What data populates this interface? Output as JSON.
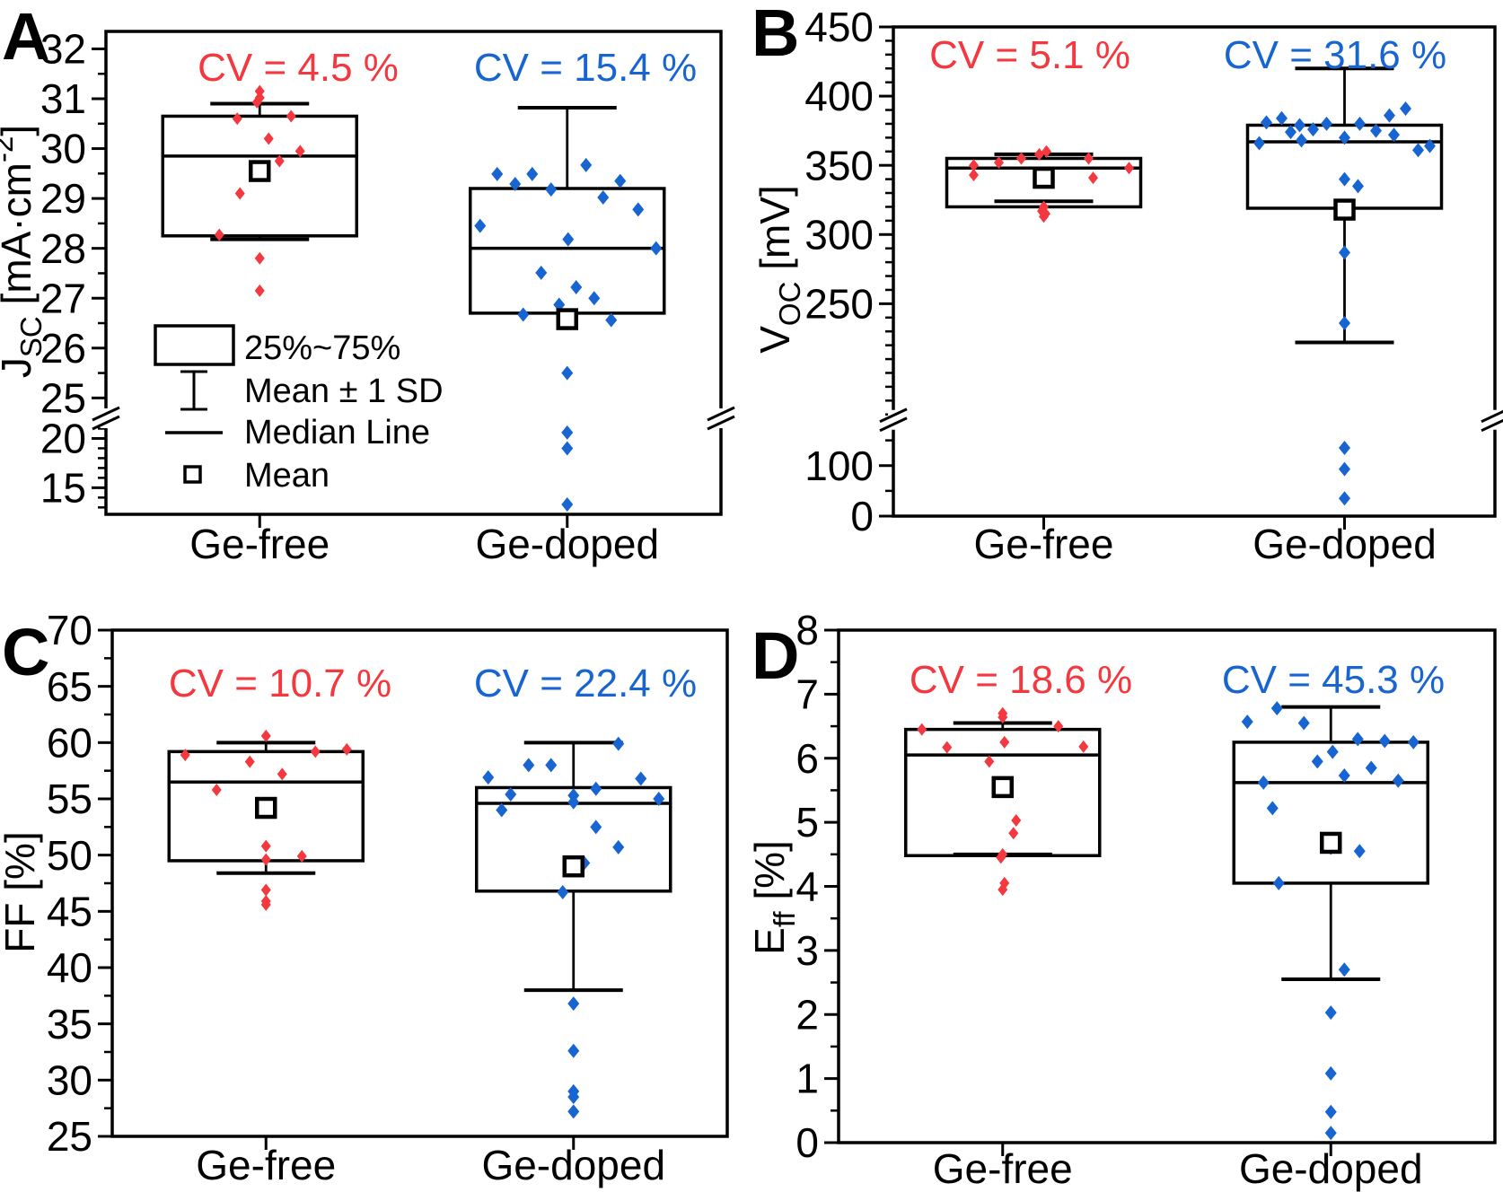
{
  "figure": {
    "categories": [
      "Ge-free",
      "Ge-doped"
    ],
    "colors": {
      "red": "#f4383f",
      "blue": "#1865d2",
      "stroke": "#000000",
      "background": "#ffffff"
    }
  },
  "chart_data": [
    {
      "type": "box",
      "letter": "A",
      "ylabel_parts": [
        [
          "J",
          0
        ],
        [
          "SC",
          -1
        ],
        [
          " [mA·cm",
          0
        ],
        [
          "-2",
          1
        ],
        [
          "]",
          0
        ]
      ],
      "axis": {
        "segments": [
          {
            "v0": 24.7,
            "v1": 32.35,
            "frac": 0.808,
            "majors": [
              32,
              31,
              30,
              29,
              28,
              27,
              26,
              25
            ],
            "minor_step": 0.5
          },
          {
            "v0": 12.3,
            "v1": 21.5,
            "frac": 0.192,
            "majors": [
              20,
              15
            ],
            "minor_step": 1
          }
        ]
      },
      "groups": [
        {
          "name": "Ge-free",
          "color_key": "red",
          "cv_label": "CV = 4.5 %",
          "stats": {
            "q1": 28.25,
            "q3": 30.65,
            "median": 29.85,
            "mean": 29.55,
            "whisker_high": 30.9,
            "whisker_low": 28.18
          },
          "points": [
            [
              0,
              31.15
            ],
            [
              0,
              31.02
            ],
            [
              -3,
              30.93
            ],
            [
              35,
              30.65
            ],
            [
              -25,
              30.6
            ],
            [
              10,
              30.2
            ],
            [
              45,
              29.95
            ],
            [
              22,
              29.75
            ],
            [
              0,
              29.5
            ],
            [
              -22,
              29.1
            ],
            [
              -45,
              28.27
            ],
            [
              0,
              27.8
            ],
            [
              0,
              27.15
            ]
          ]
        },
        {
          "name": "Ge-doped",
          "color_key": "blue",
          "cv_label": "CV = 15.4 %",
          "stats": {
            "q1": 26.7,
            "q3": 29.2,
            "median": 28.0,
            "mean": 26.58,
            "whisker_high": 30.82,
            "whisker_low": null
          },
          "points": [
            [
              21,
              29.67
            ],
            [
              -78,
              29.49
            ],
            [
              -39,
              29.49
            ],
            [
              59,
              29.35
            ],
            [
              -58,
              29.29
            ],
            [
              -18,
              29.18
            ],
            [
              40,
              29.02
            ],
            [
              79,
              28.78
            ],
            [
              -97,
              28.45
            ],
            [
              1,
              28.18
            ],
            [
              99,
              28.0
            ],
            [
              -29,
              27.51
            ],
            [
              10,
              27.22
            ],
            [
              30,
              27.0
            ],
            [
              -9,
              26.87
            ],
            [
              -49,
              26.67
            ],
            [
              49,
              26.56
            ],
            [
              0,
              25.5
            ],
            [
              0,
              20.6
            ],
            [
              0,
              19.0
            ],
            [
              0,
              13.3
            ]
          ]
        }
      ],
      "legend": {
        "items": [
          {
            "symbol": "box",
            "label": "25%~75%"
          },
          {
            "symbol": "errorbar",
            "label": "Mean ± 1 SD"
          },
          {
            "symbol": "line",
            "label": "Median Line"
          },
          {
            "symbol": "square",
            "label": "Mean"
          }
        ]
      }
    },
    {
      "type": "box",
      "letter": "B",
      "ylabel_parts": [
        [
          "V",
          0
        ],
        [
          "OC",
          -1
        ],
        [
          " [mV]",
          0
        ]
      ],
      "axis": {
        "segments": [
          {
            "v0": 170,
            "v1": 450,
            "frac": 0.81,
            "majors": [
              450,
              400,
              350,
              300,
              250
            ],
            "minor_step": 10
          },
          {
            "v0": 0,
            "v1": 180,
            "frac": 0.19,
            "majors": [
              100,
              0
            ],
            "minor_step": 50
          }
        ]
      },
      "groups": [
        {
          "name": "Ge-free",
          "color_key": "red",
          "cv_label": "CV = 5.1 %",
          "stats": {
            "q1": 320,
            "q3": 355,
            "median": 348,
            "mean": 341,
            "whisker_high": 358,
            "whisker_low": 324
          },
          "points": [
            [
              3,
              360
            ],
            [
              -5,
              358
            ],
            [
              -25,
              355
            ],
            [
              50,
              355
            ],
            [
              -50,
              352
            ],
            [
              -78,
              350
            ],
            [
              95,
              348
            ],
            [
              -78,
              343
            ],
            [
              55,
              341
            ],
            [
              0,
              320
            ],
            [
              -2,
              317
            ],
            [
              2,
              315
            ],
            [
              0,
              313
            ]
          ]
        },
        {
          "name": "Ge-doped",
          "color_key": "blue",
          "cv_label": "CV = 31.6 %",
          "stats": {
            "q1": 319,
            "q3": 379,
            "median": 367,
            "mean": 318,
            "whisker_high": 420,
            "whisker_low": 222
          },
          "points": [
            [
              68,
              391
            ],
            [
              50,
              386
            ],
            [
              -70,
              384
            ],
            [
              -87,
              381
            ],
            [
              -20,
              380
            ],
            [
              17,
              380
            ],
            [
              -50,
              379
            ],
            [
              -35,
              376
            ],
            [
              35,
              375
            ],
            [
              -60,
              374
            ],
            [
              55,
              372
            ],
            [
              0,
              370
            ],
            [
              -48,
              368
            ],
            [
              -95,
              366
            ],
            [
              95,
              364
            ],
            [
              82,
              361
            ],
            [
              0,
              340
            ],
            [
              15,
              335
            ],
            [
              0,
              287
            ],
            [
              0,
              236
            ],
            [
              0,
              135
            ],
            [
              0,
              93
            ],
            [
              0,
              35
            ]
          ]
        }
      ]
    },
    {
      "type": "box",
      "letter": "C",
      "ylabel_parts": [
        [
          "FF [%]",
          0
        ]
      ],
      "axis": {
        "segments": [
          {
            "v0": 25,
            "v1": 70,
            "frac": 1,
            "majors": [
              70,
              65,
              60,
              55,
              50,
              45,
              40,
              35,
              30,
              25
            ],
            "minor_step": 2.5
          }
        ]
      },
      "groups": [
        {
          "name": "Ge-free",
          "color_key": "red",
          "cv_label": "CV = 10.7 %",
          "stats": {
            "q1": 49.5,
            "q3": 59.2,
            "median": 56.5,
            "mean": 54.2,
            "whisker_high": 60.0,
            "whisker_low": 48.4
          },
          "points": [
            [
              0,
              60.6
            ],
            [
              90,
              59.4
            ],
            [
              55,
              59.2
            ],
            [
              -90,
              58.9
            ],
            [
              -18,
              58.3
            ],
            [
              18,
              57.2
            ],
            [
              -55,
              55.8
            ],
            [
              0,
              50.8
            ],
            [
              40,
              49.9
            ],
            [
              0,
              49.6
            ],
            [
              0,
              46.9
            ],
            [
              0,
              45.9
            ],
            [
              0,
              45.6
            ]
          ]
        },
        {
          "name": "Ge-doped",
          "color_key": "blue",
          "cv_label": "CV = 22.4 %",
          "stats": {
            "q1": 46.8,
            "q3": 56.0,
            "median": 54.6,
            "mean": 49.0,
            "whisker_high": 60.0,
            "whisker_low": 38.0
          },
          "points": [
            [
              50,
              59.9
            ],
            [
              -50,
              58.0
            ],
            [
              -25,
              58.0
            ],
            [
              -95,
              56.9
            ],
            [
              75,
              56.8
            ],
            [
              25,
              55.9
            ],
            [
              -70,
              55.4
            ],
            [
              0,
              55.3
            ],
            [
              95,
              55.0
            ],
            [
              0,
              54.7
            ],
            [
              -80,
              54.0
            ],
            [
              25,
              52.5
            ],
            [
              50,
              50.7
            ],
            [
              12,
              49.3
            ],
            [
              -12,
              46.7
            ],
            [
              0,
              36.8
            ],
            [
              0,
              32.6
            ],
            [
              0,
              29.0
            ],
            [
              0,
              28.5
            ],
            [
              0,
              27.2
            ]
          ]
        }
      ]
    },
    {
      "type": "box",
      "letter": "D",
      "ylabel_parts": [
        [
          "E",
          0
        ],
        [
          "ff",
          -1
        ],
        [
          " [%]",
          0
        ]
      ],
      "axis": {
        "segments": [
          {
            "v0": 0,
            "v1": 8,
            "frac": 1,
            "majors": [
              8,
              7,
              6,
              5,
              4,
              3,
              2,
              1,
              0
            ],
            "minor_step": 0.5
          }
        ]
      },
      "groups": [
        {
          "name": "Ge-free",
          "color_key": "red",
          "cv_label": "CV = 18.6 %",
          "stats": {
            "q1": 4.48,
            "q3": 6.45,
            "median": 6.05,
            "mean": 5.55,
            "whisker_high": 6.55,
            "whisker_low": 4.5
          },
          "points": [
            [
              0,
              6.7
            ],
            [
              0,
              6.64
            ],
            [
              62,
              6.5
            ],
            [
              -90,
              6.45
            ],
            [
              2,
              6.25
            ],
            [
              90,
              6.18
            ],
            [
              -62,
              6.17
            ],
            [
              -15,
              5.95
            ],
            [
              15,
              5.03
            ],
            [
              12,
              4.83
            ],
            [
              0,
              4.5
            ],
            [
              -2,
              4.45
            ],
            [
              2,
              4.05
            ],
            [
              0,
              3.95
            ]
          ]
        },
        {
          "name": "Ge-doped",
          "color_key": "blue",
          "cv_label": "CV = 45.3 %",
          "stats": {
            "q1": 4.05,
            "q3": 6.25,
            "median": 5.62,
            "mean": 4.68,
            "whisker_high": 6.8,
            "whisker_low": 2.55
          },
          "points": [
            [
              -60,
              6.78
            ],
            [
              -93,
              6.57
            ],
            [
              -30,
              6.55
            ],
            [
              30,
              6.3
            ],
            [
              60,
              6.27
            ],
            [
              92,
              6.25
            ],
            [
              2,
              6.1
            ],
            [
              -15,
              5.95
            ],
            [
              45,
              5.85
            ],
            [
              15,
              5.73
            ],
            [
              75,
              5.65
            ],
            [
              -75,
              5.62
            ],
            [
              -65,
              5.22
            ],
            [
              0,
              4.6
            ],
            [
              32,
              4.55
            ],
            [
              -58,
              4.05
            ],
            [
              15,
              2.7
            ],
            [
              0,
              2.03
            ],
            [
              0,
              1.08
            ],
            [
              0,
              0.48
            ],
            [
              0,
              0.15
            ]
          ]
        }
      ]
    }
  ]
}
